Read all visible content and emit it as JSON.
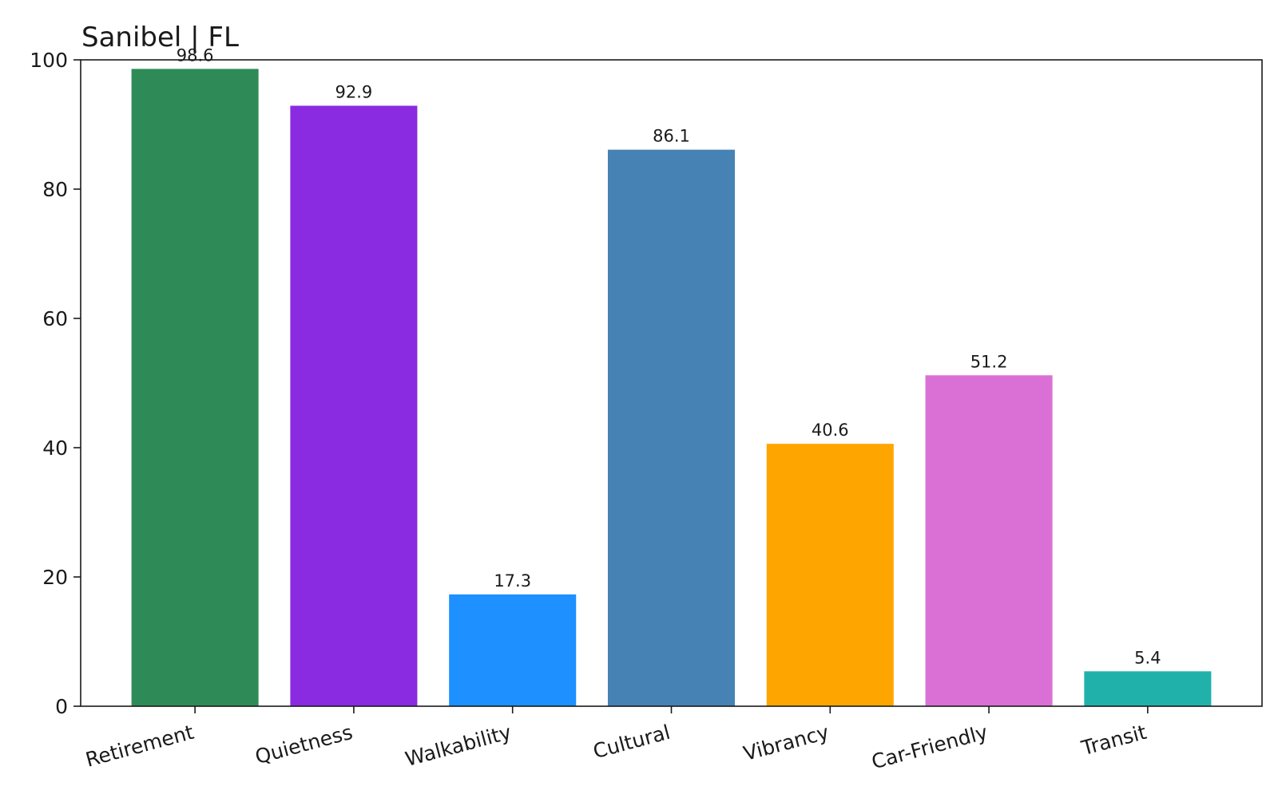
{
  "chart_data": {
    "type": "bar",
    "title": "Sanibel | FL",
    "xlabel": "",
    "ylabel": "",
    "ylim": [
      0,
      100
    ],
    "yticks": [
      0,
      20,
      40,
      60,
      80,
      100
    ],
    "grid": false,
    "categories": [
      "Retirement",
      "Quietness",
      "Walkability",
      "Cultural",
      "Vibrancy",
      "Car-Friendly",
      "Transit"
    ],
    "values": [
      98.6,
      92.9,
      17.3,
      86.1,
      40.6,
      51.2,
      5.4
    ],
    "value_labels": [
      "98.6",
      "92.9",
      "17.3",
      "86.1",
      "40.6",
      "51.2",
      "5.4"
    ],
    "colors": [
      "#2e8b57",
      "#8a2be2",
      "#1e90ff",
      "#4682b4",
      "#ffa500",
      "#da70d6",
      "#20b2aa"
    ]
  }
}
